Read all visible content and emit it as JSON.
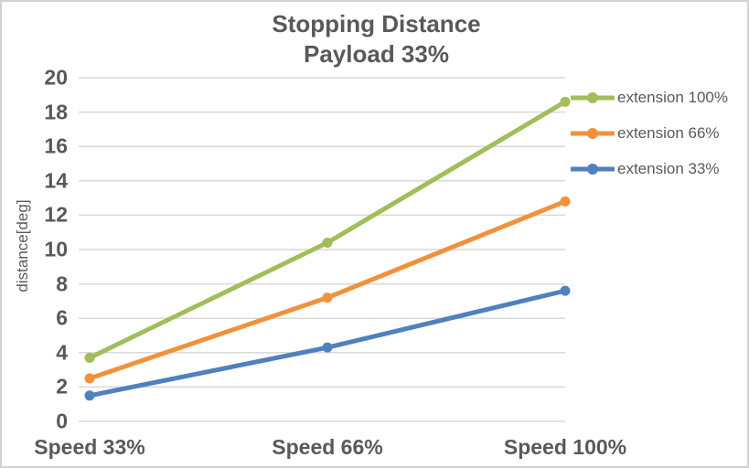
{
  "frame": {
    "background": "#ffffff",
    "border_color": "#d2d2d2"
  },
  "title": {
    "line1": "Stopping Distance",
    "line2": "Payload 33%",
    "color": "#595959"
  },
  "chart_data": {
    "type": "line",
    "title": "Stopping Distance",
    "subtitle": "Payload 33%",
    "categories": [
      "Speed 33%",
      "Speed 66%",
      "Speed 100%"
    ],
    "series": [
      {
        "name": "extension 100%",
        "color": "#a0be5a",
        "values": [
          3.7,
          10.4,
          18.6
        ]
      },
      {
        "name": "extension 66%",
        "color": "#f2913c",
        "values": [
          2.5,
          7.2,
          12.8
        ]
      },
      {
        "name": "extension 33%",
        "color": "#4e81bd",
        "values": [
          1.5,
          4.3,
          7.6
        ]
      }
    ],
    "xlabel": "",
    "ylabel": "distance[deg]",
    "ylim": [
      0,
      20
    ],
    "yticks": [
      0,
      2,
      4,
      6,
      8,
      10,
      12,
      14,
      16,
      18,
      20
    ],
    "grid": true,
    "gridline_color": "#d9d9d9",
    "text_color": "#595959",
    "legend_position": "right",
    "marker": "circle"
  }
}
